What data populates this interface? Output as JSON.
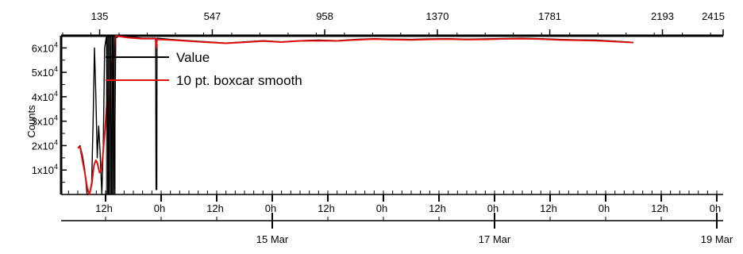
{
  "chart_data": {
    "type": "line",
    "ylabel": "Counts",
    "ylim": [
      0,
      65000
    ],
    "y_ticks": [
      {
        "value": 10000,
        "mant": "1x10",
        "exp": "4"
      },
      {
        "value": 20000,
        "mant": "2x10",
        "exp": "4"
      },
      {
        "value": 30000,
        "mant": "3x10",
        "exp": "4"
      },
      {
        "value": 40000,
        "mant": "4x10",
        "exp": "4"
      },
      {
        "value": 50000,
        "mant": "5x10",
        "exp": "4"
      },
      {
        "value": 60000,
        "mant": "6x10",
        "exp": "4"
      }
    ],
    "top_axis": {
      "range": [
        0,
        2415
      ],
      "ticks": [
        "135",
        "547",
        "958",
        "1370",
        "1781",
        "2193",
        "2415"
      ]
    },
    "bottom_axis_hours": {
      "range_hours": [
        -42,
        78
      ],
      "major_ticks": [
        {
          "h": -36,
          "label": "12h"
        },
        {
          "h": -24,
          "label": "0h"
        },
        {
          "h": -12,
          "label": "12h"
        },
        {
          "h": 0,
          "label": "0h"
        },
        {
          "h": 12,
          "label": "12h"
        },
        {
          "h": 24,
          "label": "0h"
        },
        {
          "h": 36,
          "label": "12h"
        },
        {
          "h": 48,
          "label": "0h"
        },
        {
          "h": 60,
          "label": "12h"
        },
        {
          "h": 72,
          "label": "0h"
        },
        {
          "h": 84,
          "label": "12h"
        },
        {
          "h": 96,
          "label": "0h"
        }
      ]
    },
    "bottom_axis_days": {
      "ticks": [
        {
          "h": 0,
          "label": "15 Mar"
        },
        {
          "h": 48,
          "label": "17 Mar"
        },
        {
          "h": 96,
          "label": "19 Mar"
        }
      ]
    },
    "legend": {
      "placement": "top-left"
    },
    "series": [
      {
        "name": "Value",
        "color": "#000000",
        "points": [
          [
            -42,
            19000
          ],
          [
            -41.5,
            20000
          ],
          [
            -41,
            16000
          ],
          [
            -40.5,
            10000
          ],
          [
            -40,
            0
          ],
          [
            -39.5,
            0
          ],
          [
            -39,
            5000
          ],
          [
            -38.7,
            30000
          ],
          [
            -38.4,
            60000
          ],
          [
            -38.1,
            40000
          ],
          [
            -37.8,
            15000
          ],
          [
            -37.5,
            28000
          ],
          [
            -37.2,
            18000
          ],
          [
            -36.8,
            0
          ],
          [
            -36.5,
            20000
          ],
          [
            -36.2,
            60000
          ],
          [
            -35.8,
            65000
          ],
          [
            -35.4,
            0
          ],
          [
            -35,
            65000
          ],
          [
            -34.7,
            0
          ],
          [
            -34.4,
            65000
          ],
          [
            -34.1,
            2000
          ],
          [
            -33.8,
            64000
          ],
          [
            -33,
            65000
          ],
          [
            -31,
            64500
          ],
          [
            -28,
            64000
          ],
          [
            -26,
            64000
          ],
          [
            -25.2,
            64000
          ],
          [
            -25.1,
            2000
          ],
          [
            -24.95,
            2000
          ],
          [
            -24.9,
            64000
          ],
          [
            -22,
            63500
          ],
          [
            -18,
            63000
          ],
          [
            -14,
            62500
          ],
          [
            -10,
            62000
          ],
          [
            -6,
            62500
          ],
          [
            -2,
            63000
          ],
          [
            2,
            62500
          ],
          [
            6,
            63000
          ],
          [
            10,
            63200
          ],
          [
            14,
            63000
          ],
          [
            18,
            63500
          ],
          [
            22,
            63800
          ],
          [
            26,
            63600
          ],
          [
            30,
            63500
          ],
          [
            34,
            63700
          ],
          [
            38,
            63800
          ],
          [
            42,
            63600
          ],
          [
            46,
            63700
          ],
          [
            50,
            63900
          ],
          [
            54,
            64000
          ],
          [
            58,
            63800
          ],
          [
            62,
            63500
          ],
          [
            66,
            63300
          ],
          [
            70,
            63200
          ],
          [
            74,
            62800
          ],
          [
            78,
            62300
          ]
        ]
      },
      {
        "name": "10 pt. boxcar smooth",
        "color": "#e0110e",
        "points": [
          [
            -42,
            19000
          ],
          [
            -41.5,
            19500
          ],
          [
            -41,
            14000
          ],
          [
            -40.5,
            9000
          ],
          [
            -40,
            3000
          ],
          [
            -39.5,
            0
          ],
          [
            -39,
            4000
          ],
          [
            -38.5,
            12000
          ],
          [
            -38.1,
            14000
          ],
          [
            -37.8,
            13000
          ],
          [
            -37.3,
            9000
          ],
          [
            -36.9,
            10000
          ],
          [
            -36.5,
            18000
          ],
          [
            -36.1,
            27000
          ],
          [
            -35.7,
            38000
          ],
          [
            -35.3,
            33000
          ],
          [
            -34.9,
            46000
          ],
          [
            -34.5,
            55000
          ],
          [
            -34.1,
            58000
          ],
          [
            -33.8,
            65000
          ],
          [
            -33,
            64700
          ],
          [
            -31,
            64200
          ],
          [
            -28,
            63800
          ],
          [
            -26,
            63800
          ],
          [
            -25.2,
            63800
          ],
          [
            -25.05,
            60000
          ],
          [
            -24.9,
            63500
          ],
          [
            -22,
            63300
          ],
          [
            -18,
            62800
          ],
          [
            -14,
            62300
          ],
          [
            -10,
            61900
          ],
          [
            -6,
            62300
          ],
          [
            -2,
            62800
          ],
          [
            2,
            62400
          ],
          [
            6,
            62900
          ],
          [
            10,
            63000
          ],
          [
            14,
            62900
          ],
          [
            18,
            63300
          ],
          [
            22,
            63600
          ],
          [
            26,
            63400
          ],
          [
            30,
            63300
          ],
          [
            34,
            63500
          ],
          [
            38,
            63600
          ],
          [
            42,
            63400
          ],
          [
            46,
            63500
          ],
          [
            50,
            63700
          ],
          [
            54,
            63800
          ],
          [
            58,
            63600
          ],
          [
            62,
            63300
          ],
          [
            66,
            63100
          ],
          [
            70,
            63000
          ],
          [
            74,
            62600
          ],
          [
            78,
            62200
          ]
        ]
      }
    ]
  }
}
